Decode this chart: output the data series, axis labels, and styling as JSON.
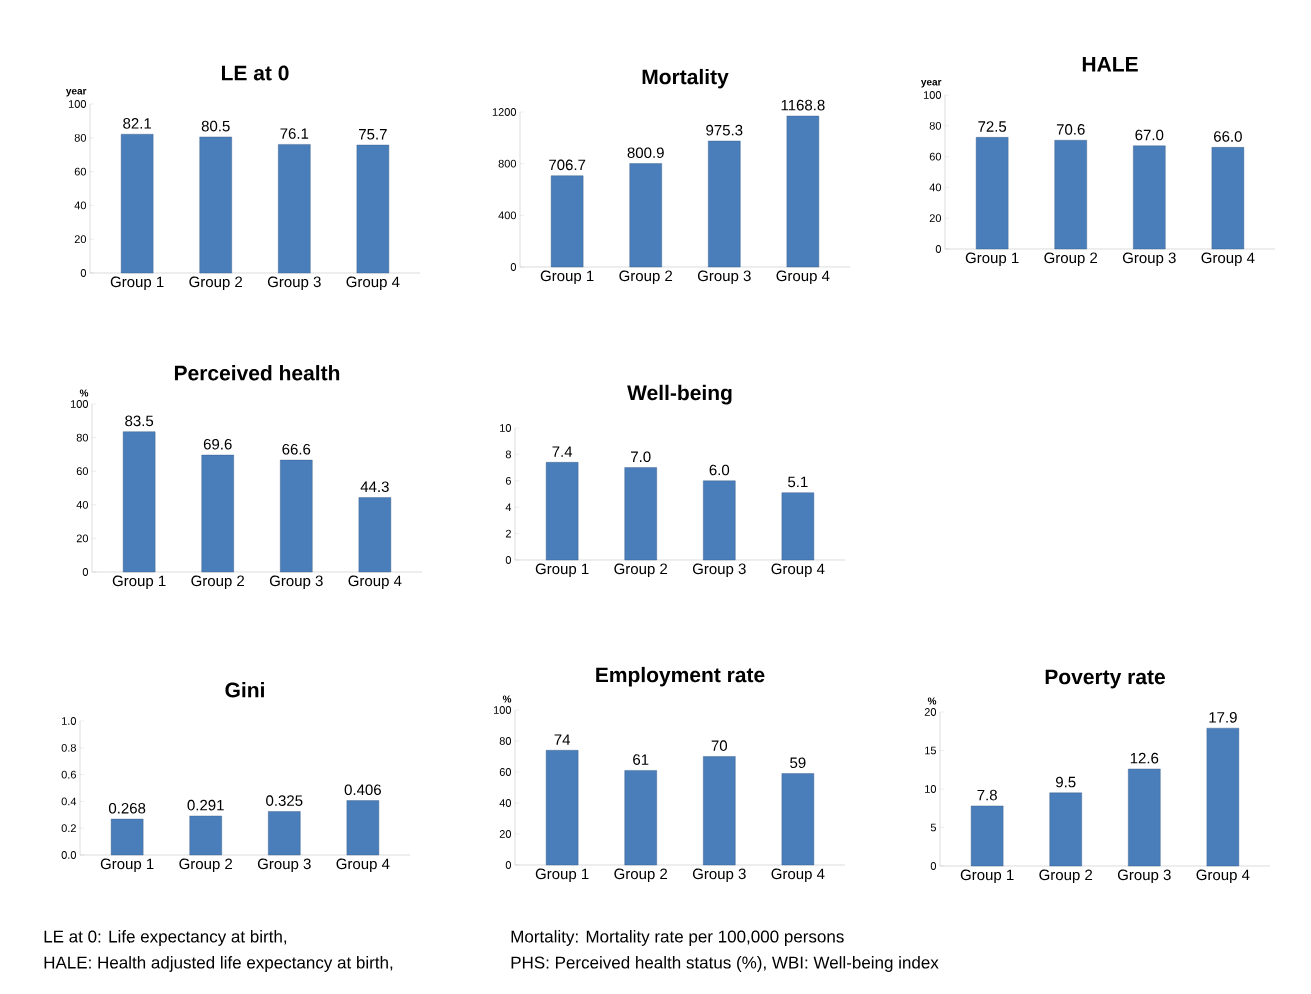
{
  "chart_data": [
    {
      "type": "bar",
      "title": "LE at 0",
      "ylabel": "year",
      "categories": [
        "Group 1",
        "Group 2",
        "Group 3",
        "Group 4"
      ],
      "values": [
        82.1,
        80.5,
        76.1,
        75.7
      ],
      "value_labels": [
        "82.1",
        "80.5",
        "76.1",
        "75.7"
      ],
      "color": "#4a7ebb",
      "ylim": [
        0,
        100
      ],
      "yticks": [
        0,
        20,
        40,
        60,
        80,
        100
      ]
    },
    {
      "type": "bar",
      "title": "Mortality",
      "categories": [
        "Group 1",
        "Group 2",
        "Group 3",
        "Group 4"
      ],
      "values": [
        706.7,
        800.9,
        975.3,
        1168.8
      ],
      "value_labels": [
        "706.7",
        "800.9",
        "975.3",
        "1168.8"
      ],
      "color": "#4a7ebb",
      "ylim": [
        0,
        1200
      ],
      "yticks": [
        0,
        400,
        800,
        1200
      ]
    },
    {
      "type": "bar",
      "title": "HALE",
      "ylabel": "year",
      "categories": [
        "Group 1",
        "Group 2",
        "Group 3",
        "Group 4"
      ],
      "values": [
        72.5,
        70.6,
        67.0,
        66.0
      ],
      "value_labels": [
        "72.5",
        "70.6",
        "67.0",
        "66.0"
      ],
      "color": "#4a7ebb",
      "ylim": [
        0,
        100
      ],
      "yticks": [
        0,
        20,
        40,
        60,
        80,
        100
      ]
    },
    {
      "type": "bar",
      "title": "Perceived health",
      "ylabel": "%",
      "categories": [
        "Group 1",
        "Group 2",
        "Group 3",
        "Group 4"
      ],
      "values": [
        83.5,
        69.6,
        66.6,
        44.3
      ],
      "value_labels": [
        "83.5",
        "69.6",
        "66.6",
        "44.3"
      ],
      "color": "#4a7ebb",
      "ylim": [
        0,
        100
      ],
      "yticks": [
        0,
        20,
        40,
        60,
        80,
        100
      ]
    },
    {
      "type": "bar",
      "title": "Well-being",
      "categories": [
        "Group 1",
        "Group 2",
        "Group 3",
        "Group 4"
      ],
      "values": [
        7.4,
        7.0,
        6.0,
        5.1
      ],
      "value_labels": [
        "7.4",
        "7.0",
        "6.0",
        "5.1"
      ],
      "color": "#4a7ebb",
      "ylim": [
        0,
        10
      ],
      "yticks": [
        0,
        2,
        4,
        6,
        8,
        10
      ]
    },
    {
      "type": "bar",
      "title": "Gini",
      "categories": [
        "Group 1",
        "Group 2",
        "Group 3",
        "Group 4"
      ],
      "values": [
        0.268,
        0.291,
        0.325,
        0.406
      ],
      "value_labels": [
        "0.268",
        "0.291",
        "0.325",
        "0.406"
      ],
      "color": "#4a7ebb",
      "ylim": [
        0,
        1
      ],
      "yticks": [
        {
          "value": 0,
          "label": "0.0"
        },
        {
          "value": 0.2,
          "label": "0.2"
        },
        {
          "value": 0.4,
          "label": "0.4"
        },
        {
          "value": 0.6,
          "label": "0.6"
        },
        {
          "value": 0.8,
          "label": "0.8"
        },
        {
          "value": 1,
          "label": "1.0"
        }
      ]
    },
    {
      "type": "bar",
      "title": "Employment rate",
      "ylabel": "%",
      "categories": [
        "Group 1",
        "Group 2",
        "Group 3",
        "Group 4"
      ],
      "values": [
        74,
        61,
        70,
        59
      ],
      "value_labels": [
        "74",
        "61",
        "70",
        "59"
      ],
      "color": "#4a7ebb",
      "ylim": [
        0,
        100
      ],
      "yticks": [
        0,
        20,
        40,
        60,
        80,
        100
      ]
    },
    {
      "type": "bar",
      "title": "Poverty rate",
      "ylabel": "%",
      "categories": [
        "Group 1",
        "Group 2",
        "Group 3",
        "Group 4"
      ],
      "values": [
        7.8,
        9.5,
        12.6,
        17.9
      ],
      "value_labels": [
        "7.8",
        "9.5",
        "12.6",
        "17.9"
      ],
      "color": "#4a7ebb",
      "ylim": [
        0,
        20
      ],
      "yticks": [
        0,
        5,
        10,
        15,
        20
      ]
    },
    {
      "type": "other",
      "annotations": [
        "LE at 0: Life expectancy at birth,",
        "Mortality: Mortality rate per 100,000 persons",
        "HALE: Health adjusted life expectancy at birth,",
        "PHS: Perceived health status (%), WBI: Well-being index"
      ]
    }
  ]
}
